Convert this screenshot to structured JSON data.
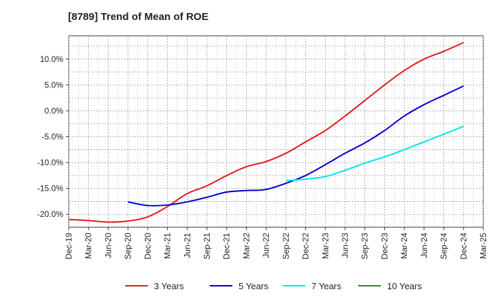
{
  "chart_data": {
    "type": "line",
    "title": "[8789]  Trend of Mean of ROE",
    "xlabel": "",
    "ylabel": "",
    "x": [
      "Dec-19",
      "Mar-20",
      "Jun-20",
      "Sep-20",
      "Dec-20",
      "Mar-21",
      "Jun-21",
      "Sep-21",
      "Dec-21",
      "Mar-22",
      "Jun-22",
      "Sep-22",
      "Dec-22",
      "Mar-23",
      "Jun-23",
      "Sep-23",
      "Dec-23",
      "Mar-24",
      "Jun-24",
      "Sep-24",
      "Dec-24",
      "Mar-25"
    ],
    "y_ticks": [
      "10.0%",
      "5.0%",
      "0.0%",
      "-5.0%",
      "-10.0%",
      "-15.0%",
      "-20.0%"
    ],
    "ylim": [
      -22.5,
      14.5
    ],
    "grid": true,
    "legend_position": "bottom",
    "series": [
      {
        "name": "3 Years",
        "color": "#e31a1c",
        "values": [
          -21.0,
          -21.2,
          -21.5,
          -21.3,
          -20.5,
          -18.5,
          -16.0,
          -14.5,
          -12.5,
          -10.8,
          -9.8,
          -8.2,
          -6.0,
          -3.8,
          -1.0,
          2.0,
          5.0,
          7.8,
          10.0,
          11.5,
          13.2,
          null
        ]
      },
      {
        "name": "5 Years",
        "color": "#0000cc",
        "values": [
          null,
          null,
          null,
          -17.6,
          -18.3,
          -18.2,
          -17.6,
          -16.7,
          -15.7,
          -15.4,
          -15.2,
          -14.0,
          -12.5,
          -10.4,
          -8.2,
          -6.2,
          -3.8,
          -1.0,
          1.2,
          3.0,
          4.8,
          null
        ]
      },
      {
        "name": "7 Years",
        "color": "#00e5ee",
        "values": [
          null,
          null,
          null,
          null,
          null,
          null,
          null,
          null,
          null,
          null,
          null,
          -13.5,
          -13.2,
          -12.7,
          -11.5,
          -10.1,
          -8.9,
          -7.5,
          -6.0,
          -4.5,
          -3.0,
          null
        ]
      },
      {
        "name": "10 Years",
        "color": "#228b22",
        "values": [
          null,
          null,
          null,
          null,
          null,
          null,
          null,
          null,
          null,
          null,
          null,
          null,
          null,
          null,
          null,
          null,
          null,
          null,
          null,
          null,
          null,
          null
        ]
      }
    ]
  }
}
